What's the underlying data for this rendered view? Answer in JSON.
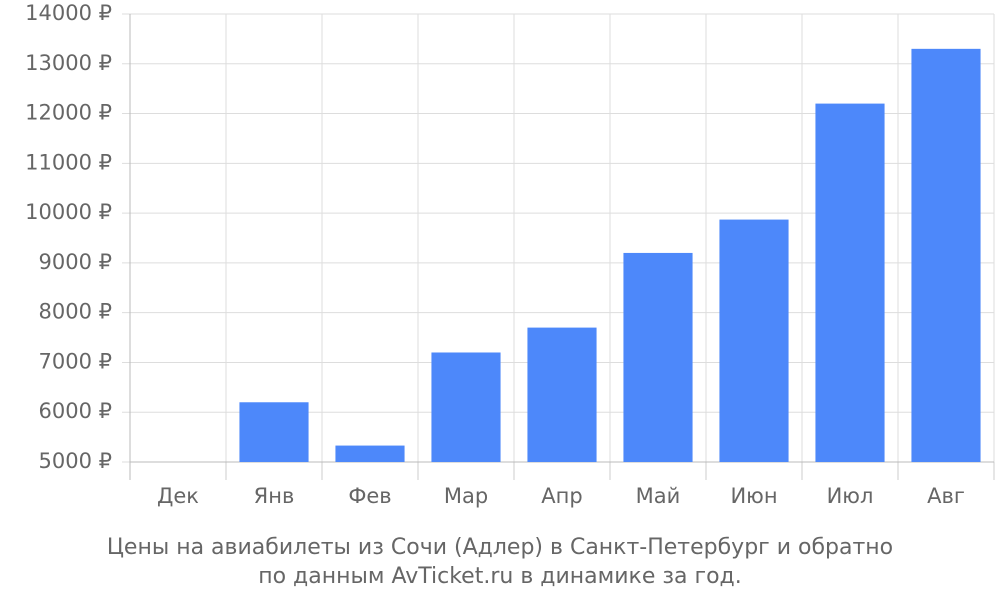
{
  "chart_data": {
    "type": "bar",
    "title_lines": [
      "Цены на авиабилеты из Сочи (Адлер) в Санкт-Петербург и обратно",
      "по данным AvTicket.ru в динамике за год."
    ],
    "categories": [
      "Дек",
      "Янв",
      "Фев",
      "Мар",
      "Апр",
      "Май",
      "Июн",
      "Июл",
      "Авг"
    ],
    "values": [
      null,
      6200,
      5330,
      7200,
      7700,
      9200,
      9870,
      12200,
      13300
    ],
    "color": "#4d88fa",
    "ylim": [
      5000,
      14000
    ],
    "yticks": [
      {
        "value": 5000,
        "label": "5000 ₽"
      },
      {
        "value": 6000,
        "label": "6000 ₽"
      },
      {
        "value": 7000,
        "label": "7000 ₽"
      },
      {
        "value": 8000,
        "label": "8000 ₽"
      },
      {
        "value": 9000,
        "label": "9000 ₽"
      },
      {
        "value": 10000,
        "label": "10000 ₽"
      },
      {
        "value": 11000,
        "label": "11000 ₽"
      },
      {
        "value": 12000,
        "label": "12000 ₽"
      },
      {
        "value": 13000,
        "label": "13000 ₽"
      },
      {
        "value": 14000,
        "label": "14000 ₽"
      }
    ],
    "grid": true
  }
}
